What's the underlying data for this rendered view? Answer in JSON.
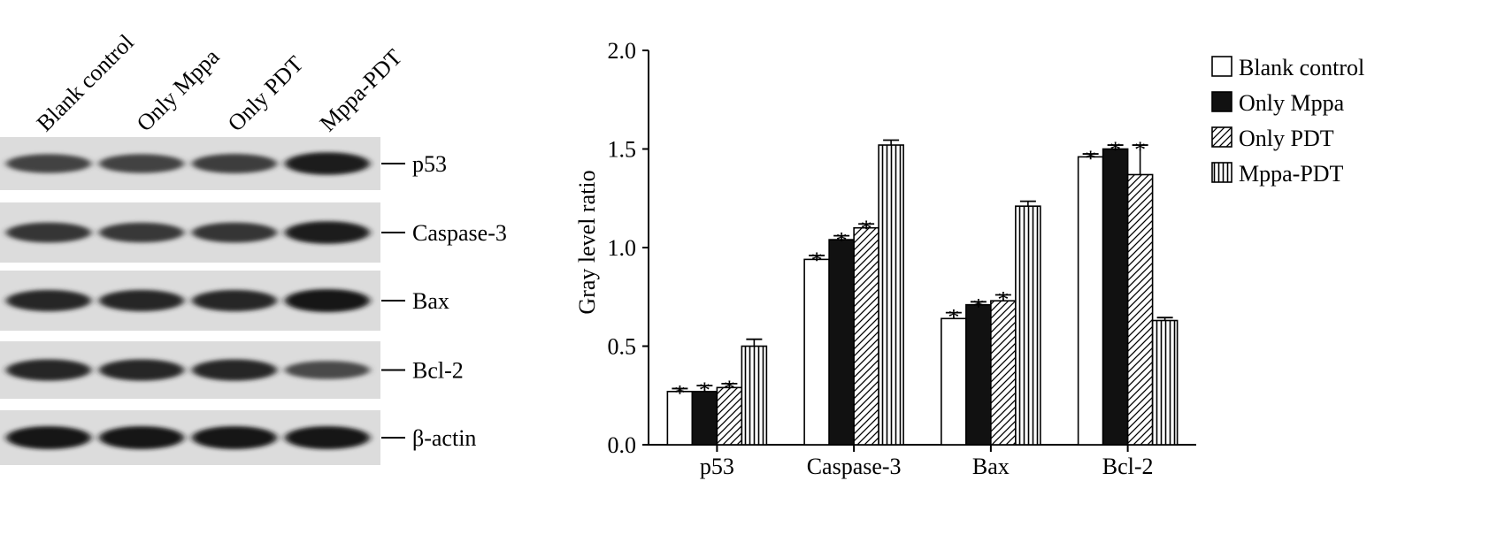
{
  "blot": {
    "lanes": [
      "Blank control",
      "Only Mppa",
      "Only PDT",
      "Mppa-PDT"
    ],
    "rows": [
      {
        "label": "p53",
        "intensity": [
          0.62,
          0.62,
          0.66,
          0.95
        ]
      },
      {
        "label": "Caspase-3",
        "intensity": [
          0.72,
          0.7,
          0.72,
          0.95
        ]
      },
      {
        "label": "Bax",
        "intensity": [
          0.85,
          0.85,
          0.85,
          1.0
        ]
      },
      {
        "label": "Bcl-2",
        "intensity": [
          0.85,
          0.85,
          0.85,
          0.55
        ]
      },
      {
        "label": "β-actin",
        "intensity": [
          1.0,
          1.0,
          1.0,
          1.0
        ]
      }
    ]
  },
  "chart_data": {
    "type": "bar",
    "title": "",
    "xlabel": "",
    "ylabel": "Gray level ratio",
    "ylim": [
      0,
      2.0
    ],
    "yticks": [
      "0.0",
      "0.5",
      "1.0",
      "1.5",
      "2.0"
    ],
    "categories": [
      "p53",
      "Caspase-3",
      "Bax",
      "Bcl-2"
    ],
    "legend_position": "top-right",
    "series": [
      {
        "name": "Blank control",
        "pattern": "white",
        "values": [
          0.27,
          0.94,
          0.64,
          1.46
        ],
        "errors": [
          0.015,
          0.02,
          0.03,
          0.015
        ],
        "significant": [
          true,
          true,
          true,
          true
        ]
      },
      {
        "name": "Only Mppa",
        "pattern": "black",
        "values": [
          0.27,
          1.04,
          0.71,
          1.5
        ],
        "errors": [
          0.03,
          0.02,
          0.015,
          0.02
        ],
        "significant": [
          true,
          true,
          true,
          true
        ]
      },
      {
        "name": "Only PDT",
        "pattern": "diagonal-hatch",
        "values": [
          0.29,
          1.1,
          0.73,
          1.37
        ],
        "errors": [
          0.02,
          0.02,
          0.03,
          0.15
        ],
        "significant": [
          true,
          true,
          true,
          true
        ]
      },
      {
        "name": "Mppa-PDT",
        "pattern": "vertical-lines",
        "values": [
          0.5,
          1.52,
          1.21,
          0.63
        ],
        "errors": [
          0.035,
          0.025,
          0.025,
          0.015
        ],
        "significant": [
          false,
          false,
          false,
          false
        ]
      }
    ],
    "significance_marker": "*"
  }
}
